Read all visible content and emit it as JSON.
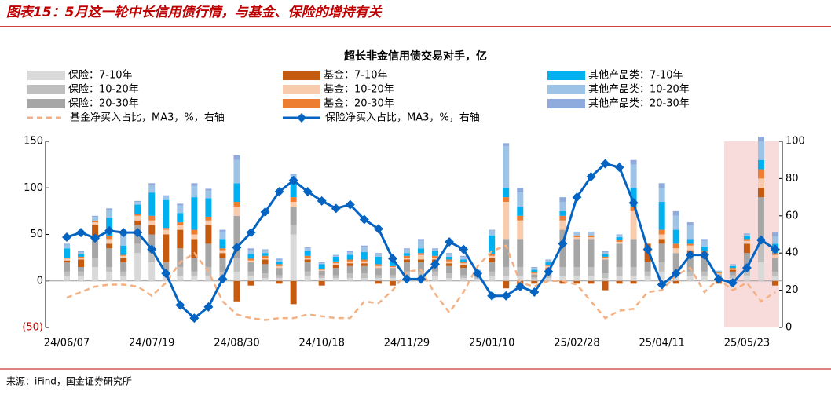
{
  "header": {
    "title": "图表15：5月这一轮中长信用债行情，与基金、保险的增持有关"
  },
  "source": "来源：iFind，国金证券研究所",
  "chart_data": {
    "type": "bar",
    "title": "超长非金信用债交易对手，亿",
    "categories": [
      "24/06/07",
      null,
      null,
      null,
      null,
      null,
      "24/07/19",
      null,
      null,
      null,
      null,
      null,
      "24/08/30",
      null,
      null,
      null,
      null,
      null,
      "24/10/18",
      null,
      null,
      null,
      null,
      null,
      "24/11/29",
      null,
      null,
      null,
      null,
      null,
      "25/01/10",
      null,
      null,
      null,
      null,
      null,
      "25/02/28",
      null,
      null,
      null,
      null,
      null,
      "25/04/11",
      null,
      null,
      null,
      null,
      null,
      "25/05/23",
      null,
      null
    ],
    "ylim": [
      -50,
      150
    ],
    "yticks": [
      {
        "value": -50,
        "label": "(50)"
      },
      0,
      50,
      100,
      150
    ],
    "y2lim": [
      0,
      100
    ],
    "y2ticks": [
      0,
      20,
      40,
      60,
      80,
      100
    ],
    "series": [
      {
        "name": "保险：7-10年",
        "color": "#d9d9d9",
        "values": [
          5,
          5,
          15,
          10,
          5,
          30,
          20,
          5,
          5,
          5,
          5,
          5,
          10,
          5,
          3,
          3,
          50,
          5,
          3,
          3,
          3,
          3,
          3,
          3,
          5,
          5,
          5,
          3,
          3,
          2,
          5,
          5,
          5,
          2,
          3,
          5,
          5,
          5,
          3,
          5,
          5,
          5,
          10,
          5,
          5,
          5,
          2,
          3,
          5,
          20,
          5
        ]
      },
      {
        "name": "保险：10-20年",
        "color": "#bfbfbf",
        "values": [
          5,
          5,
          10,
          5,
          5,
          10,
          10,
          5,
          10,
          5,
          10,
          5,
          15,
          5,
          5,
          3,
          10,
          5,
          3,
          3,
          5,
          5,
          3,
          3,
          5,
          5,
          5,
          5,
          3,
          2,
          5,
          10,
          10,
          2,
          3,
          10,
          10,
          10,
          5,
          10,
          10,
          5,
          10,
          5,
          5,
          5,
          2,
          3,
          5,
          20,
          5
        ]
      },
      {
        "name": "保险：20-30年",
        "color": "#a6a6a6",
        "values": [
          10,
          5,
          20,
          20,
          10,
          20,
          20,
          10,
          20,
          15,
          25,
          15,
          45,
          10,
          10,
          8,
          20,
          10,
          5,
          8,
          8,
          8,
          8,
          8,
          10,
          10,
          10,
          8,
          8,
          3,
          10,
          30,
          30,
          3,
          5,
          40,
          30,
          30,
          15,
          25,
          30,
          10,
          20,
          20,
          20,
          15,
          3,
          4,
          20,
          50,
          15
        ]
      },
      {
        "name": "基金：7-10年",
        "color": "#c55a11",
        "values": [
          2,
          8,
          15,
          5,
          5,
          5,
          10,
          30,
          20,
          20,
          20,
          5,
          -22,
          -5,
          5,
          -3,
          -25,
          3,
          -5,
          3,
          3,
          3,
          -3,
          -5,
          3,
          3,
          3,
          3,
          3,
          2,
          5,
          -8,
          -5,
          -3,
          3,
          -3,
          -3,
          -3,
          -10,
          -3,
          -3,
          20,
          5,
          -3,
          3,
          3,
          -3,
          2,
          10,
          10,
          -5
        ]
      },
      {
        "name": "基金：10-20年",
        "color": "#f8cbad",
        "values": [
          2,
          2,
          3,
          5,
          2,
          5,
          5,
          5,
          5,
          5,
          5,
          3,
          10,
          2,
          2,
          2,
          5,
          2,
          1,
          2,
          2,
          2,
          2,
          1,
          2,
          5,
          2,
          2,
          2,
          1,
          2,
          40,
          20,
          1,
          2,
          10,
          2,
          2,
          2,
          2,
          30,
          0,
          5,
          5,
          5,
          2,
          1,
          1,
          3,
          10,
          3
        ]
      },
      {
        "name": "基金：20-30年",
        "color": "#ed7d31",
        "values": [
          1,
          1,
          2,
          3,
          1,
          2,
          5,
          2,
          3,
          5,
          4,
          2,
          5,
          2,
          2,
          2,
          5,
          2,
          1,
          2,
          2,
          2,
          2,
          1,
          2,
          2,
          2,
          2,
          1,
          0,
          2,
          5,
          5,
          1,
          1,
          5,
          2,
          2,
          1,
          2,
          5,
          0,
          5,
          5,
          2,
          2,
          1,
          1,
          2,
          10,
          2
        ]
      },
      {
        "name": "其他产品类：7-10年",
        "color": "#00b0f0",
        "values": [
          10,
          3,
          0,
          20,
          10,
          10,
          25,
          30,
          10,
          35,
          20,
          10,
          20,
          5,
          3,
          3,
          20,
          5,
          5,
          5,
          5,
          8,
          8,
          5,
          3,
          5,
          5,
          3,
          3,
          1,
          20,
          10,
          10,
          3,
          3,
          5,
          0,
          0,
          3,
          3,
          20,
          0,
          30,
          15,
          5,
          5,
          1,
          2,
          3,
          10,
          10
        ]
      },
      {
        "name": "其他产品类：10-20年",
        "color": "#9dc3e6",
        "values": [
          4,
          2,
          4,
          8,
          10,
          3,
          8,
          4,
          8,
          12,
          8,
          8,
          25,
          4,
          3,
          2,
          4,
          3,
          1,
          1,
          3,
          5,
          3,
          3,
          4,
          8,
          2,
          3,
          3,
          1,
          5,
          45,
          15,
          2,
          2,
          10,
          3,
          3,
          2,
          2,
          25,
          0,
          15,
          15,
          15,
          6,
          1,
          1,
          2,
          20,
          8
        ]
      },
      {
        "name": "其他产品类：20-30年",
        "color": "#8faadc",
        "values": [
          1,
          1,
          1,
          2,
          2,
          1,
          2,
          1,
          2,
          3,
          2,
          2,
          5,
          2,
          1,
          1,
          1,
          1,
          1,
          1,
          1,
          2,
          1,
          1,
          1,
          2,
          1,
          1,
          1,
          0,
          1,
          3,
          5,
          1,
          1,
          5,
          1,
          1,
          1,
          1,
          5,
          0,
          5,
          5,
          3,
          2,
          0,
          1,
          1,
          5,
          4
        ]
      },
      {
        "name": "基金净买入占比，MA3，%，右轴",
        "type": "line",
        "axis": "y2",
        "dashed": true,
        "color": "#f4b183",
        "values": [
          16,
          19,
          22,
          23,
          23,
          22,
          17,
          24,
          35,
          40,
          30,
          14,
          7,
          5,
          4,
          5,
          5,
          7,
          6,
          5,
          5,
          14,
          13,
          20,
          30,
          31,
          18,
          8,
          19,
          33,
          41,
          44,
          24,
          22,
          25,
          25,
          23,
          14,
          5,
          9,
          10,
          19,
          20,
          28,
          32,
          19,
          26,
          20,
          24,
          14,
          19
        ]
      },
      {
        "name": "保险净买入占比，MA3，%，右轴",
        "type": "line",
        "axis": "y2",
        "dashed": false,
        "markers": true,
        "color": "#0563c1",
        "values": [
          48.5,
          51,
          48,
          52,
          51,
          51,
          42,
          29,
          12,
          5,
          11,
          26,
          43,
          51,
          62,
          73,
          79,
          73,
          68,
          64,
          66,
          58,
          53,
          37,
          26,
          26,
          34,
          46,
          42,
          29,
          17,
          17,
          22,
          19,
          30,
          45,
          70,
          81,
          88,
          86,
          67,
          42,
          23,
          29,
          39,
          39,
          26,
          24,
          32,
          47,
          42
        ]
      }
    ]
  }
}
